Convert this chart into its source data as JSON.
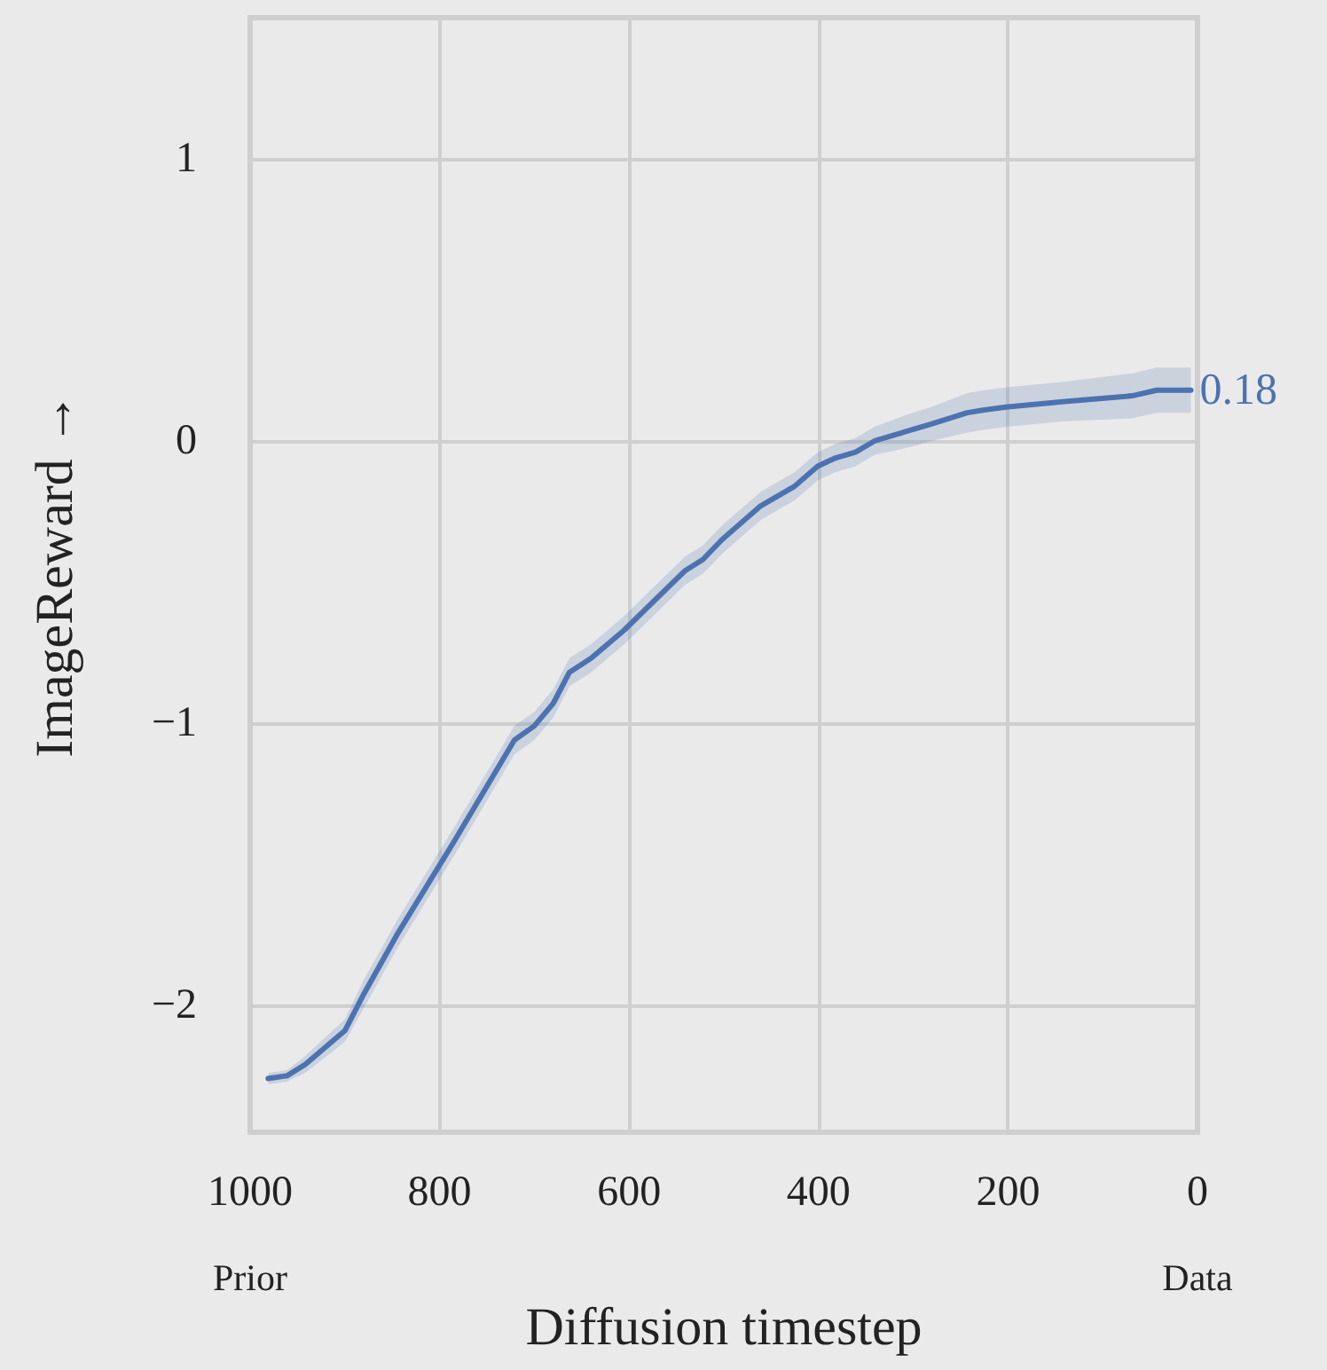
{
  "chart_data": {
    "type": "line",
    "xlabel": "Diffusion timestep",
    "ylabel": "ImageReward →",
    "x": [
      981,
      961,
      942,
      900,
      880,
      845,
      783,
      721,
      700,
      680,
      663,
      640,
      605,
      541,
      522,
      502,
      461,
      425,
      401,
      382,
      361,
      341,
      301,
      281,
      243,
      225,
      202,
      140,
      69,
      43,
      7
    ],
    "series": [
      {
        "color": "#4c72b0",
        "line_style": "solid",
        "values": [
          -2.26,
          -2.25,
          -2.21,
          -2.09,
          -1.96,
          -1.75,
          -1.41,
          -1.06,
          -1.01,
          -0.93,
          -0.82,
          -0.77,
          -0.67,
          -0.46,
          -0.42,
          -0.35,
          -0.23,
          -0.16,
          -0.09,
          -0.06,
          -0.04,
          0.0,
          0.04,
          0.06,
          0.1,
          0.11,
          0.12,
          0.14,
          0.16,
          0.18,
          0.18
        ],
        "lower": [
          -2.28,
          -2.27,
          -2.24,
          -2.13,
          -2.01,
          -1.8,
          -1.46,
          -1.11,
          -1.06,
          -0.98,
          -0.87,
          -0.82,
          -0.72,
          -0.51,
          -0.47,
          -0.4,
          -0.28,
          -0.21,
          -0.14,
          -0.11,
          -0.09,
          -0.05,
          -0.02,
          0.0,
          0.03,
          0.04,
          0.05,
          0.07,
          0.08,
          0.1,
          0.1
        ],
        "upper": [
          -2.24,
          -2.23,
          -2.18,
          -2.05,
          -1.91,
          -1.7,
          -1.36,
          -1.01,
          -0.96,
          -0.88,
          -0.77,
          -0.72,
          -0.62,
          -0.41,
          -0.37,
          -0.3,
          -0.18,
          -0.11,
          -0.04,
          -0.01,
          0.01,
          0.05,
          0.1,
          0.12,
          0.17,
          0.18,
          0.19,
          0.21,
          0.24,
          0.26,
          0.26
        ],
        "value_labels": [
          null,
          null,
          null,
          null,
          null,
          null,
          null,
          null,
          null,
          null,
          null,
          null,
          null,
          null,
          null,
          null,
          null,
          null,
          null,
          null,
          null,
          null,
          null,
          null,
          null,
          null,
          null,
          null,
          null,
          null,
          "0.18"
        ]
      }
    ],
    "xlim": [
      1000,
      0
    ],
    "ylim": [
      -2.45,
      1.5
    ],
    "xticks": [
      1000,
      800,
      600,
      400,
      200,
      0
    ],
    "yticks": [
      -2,
      -1,
      0,
      1
    ],
    "annotations": [
      "Prior",
      "Data"
    ],
    "grid": true,
    "marker": "none"
  }
}
